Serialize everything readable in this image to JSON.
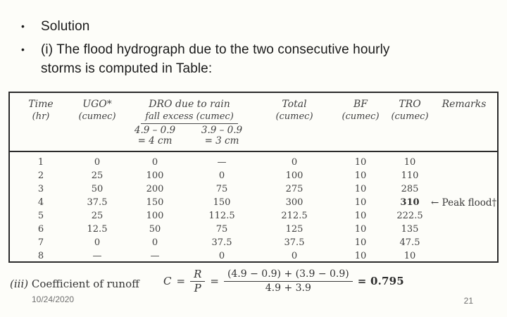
{
  "slide": {
    "bullet_glyph": "•",
    "bullets": [
      {
        "lines": [
          "Solution"
        ]
      },
      {
        "lines": [
          "(i) The flood hydrograph due to the two consecutive hourly",
          "storms is computed in Table:"
        ]
      }
    ],
    "footer": {
      "date": "10/24/2020",
      "page": "21"
    }
  },
  "table": {
    "header": {
      "time": [
        "Time",
        "(hr)"
      ],
      "ugo": [
        "UGO*",
        "(cumec)"
      ],
      "dro_group": [
        "DRO due to rain",
        "fall excess (cumec)"
      ],
      "dro_sub1": [
        "4.9 – 0.9",
        "= 4 cm"
      ],
      "dro_sub2": [
        "3.9 – 0.9",
        "= 3 cm"
      ],
      "total": [
        "Total",
        "(cumec)"
      ],
      "bf": [
        "BF",
        "(cumec)"
      ],
      "tro": [
        "TRO",
        "(cumec)"
      ],
      "remarks": "Remarks"
    },
    "rows": [
      [
        "1",
        "0",
        "0",
        "—",
        "0",
        "10",
        "10",
        ""
      ],
      [
        "2",
        "25",
        "100",
        "0",
        "100",
        "10",
        "110",
        ""
      ],
      [
        "3",
        "50",
        "200",
        "75",
        "275",
        "10",
        "285",
        ""
      ],
      [
        "4",
        "37.5",
        "150",
        "150",
        "300",
        "10",
        "310",
        "← Peak flood†"
      ],
      [
        "5",
        "25",
        "100",
        "112.5",
        "212.5",
        "10",
        "222.5",
        ""
      ],
      [
        "6",
        "12.5",
        "50",
        "75",
        "125",
        "10",
        "135",
        ""
      ],
      [
        "7",
        "0",
        "0",
        "37.5",
        "37.5",
        "10",
        "47.5",
        ""
      ],
      [
        "8",
        "—",
        "—",
        "0",
        "0",
        "10",
        "10",
        ""
      ]
    ]
  },
  "runoff": {
    "label_prefix": "(iii)",
    "label_text": " Coefficient of runoff",
    "formula": {
      "var": "C",
      "eq": "=",
      "frac1_num": "R",
      "frac1_den": "P",
      "eq2": "=",
      "frac2_num": "(4.9 − 0.9) + (3.9 − 0.9)",
      "frac2_den": "4.9 + 3.9",
      "result": "= 0.795"
    }
  },
  "colors": {
    "slide_text": "#1a1a1a",
    "table_ink": "#3f3f3f",
    "border": "#2b2b2b",
    "footer_gray": "#6f6f6f",
    "background": "#fdfdf9"
  }
}
